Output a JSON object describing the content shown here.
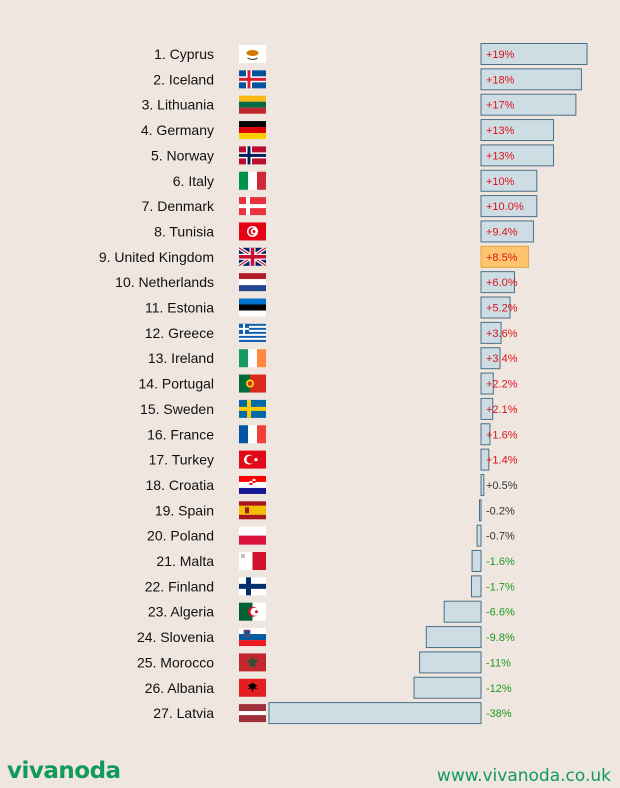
{
  "chart_data": {
    "type": "bar",
    "orientation": "horizontal",
    "zero_axis": true,
    "colors": {
      "bar_fill": "#cddde3",
      "bar_stroke": "#4a6f86",
      "highlight_fill": "#ffc56e",
      "highlight_stroke": "#e2a245",
      "positive_text": "#e0111b",
      "negative_text": "#1f9a1f",
      "neutral_text": "#333333"
    },
    "categories": [
      "1. Cyprus",
      "2. Iceland",
      "3. Lithuania",
      "4. Germany",
      "5. Norway",
      "6. Italy",
      "7. Denmark",
      "8. Tunisia",
      "9. United Kingdom",
      "10. Netherlands",
      "11. Estonia",
      "12. Greece",
      "13. Ireland",
      "14. Portugal",
      "15. Sweden",
      "16. France",
      "17. Turkey",
      "18. Croatia",
      "19. Spain",
      "20. Poland",
      "21. Malta",
      "22. Finland",
      "23. Algeria",
      "24. Slovenia",
      "25. Morocco",
      "26. Albania",
      "27. Latvia"
    ],
    "flags": [
      "cyprus-flag",
      "iceland-flag",
      "lithuania-flag",
      "germany-flag",
      "norway-flag",
      "italy-flag",
      "denmark-flag",
      "tunisia-flag",
      "united-kingdom-flag",
      "netherlands-flag",
      "estonia-flag",
      "greece-flag",
      "ireland-flag",
      "portugal-flag",
      "sweden-flag",
      "france-flag",
      "turkey-flag",
      "croatia-flag",
      "spain-flag",
      "poland-flag",
      "malta-flag",
      "finland-flag",
      "algeria-flag",
      "slovenia-flag",
      "morocco-flag",
      "albania-flag",
      "latvia-flag"
    ],
    "values": [
      19,
      18,
      17,
      13,
      13,
      10,
      10.0,
      9.4,
      8.5,
      6.0,
      5.2,
      3.6,
      3.4,
      2.2,
      2.1,
      1.6,
      1.4,
      0.5,
      -0.2,
      -0.7,
      -1.6,
      -1.7,
      -6.6,
      -9.8,
      -11,
      -12,
      -38
    ],
    "value_labels": [
      "+19%",
      "+18%",
      "+17%",
      "+13%",
      "+13%",
      "+10%",
      "+10.0%",
      "+9.4%",
      "+8.5%",
      "+6.0%",
      "+5.2%",
      "+3.6%",
      "+3.4%",
      "+2.2%",
      "+2.1%",
      "+1.6%",
      "+1.4%",
      "+0.5%",
      "-0.2%",
      "-0.7%",
      "-1.6%",
      "-1.7%",
      "-6.6%",
      "-9.8%",
      "-11%",
      "-12%",
      "-38%"
    ],
    "highlight_index": 8
  },
  "footer": {
    "logo": "vivanoda",
    "url": "www.vivanoda.co.uk"
  }
}
